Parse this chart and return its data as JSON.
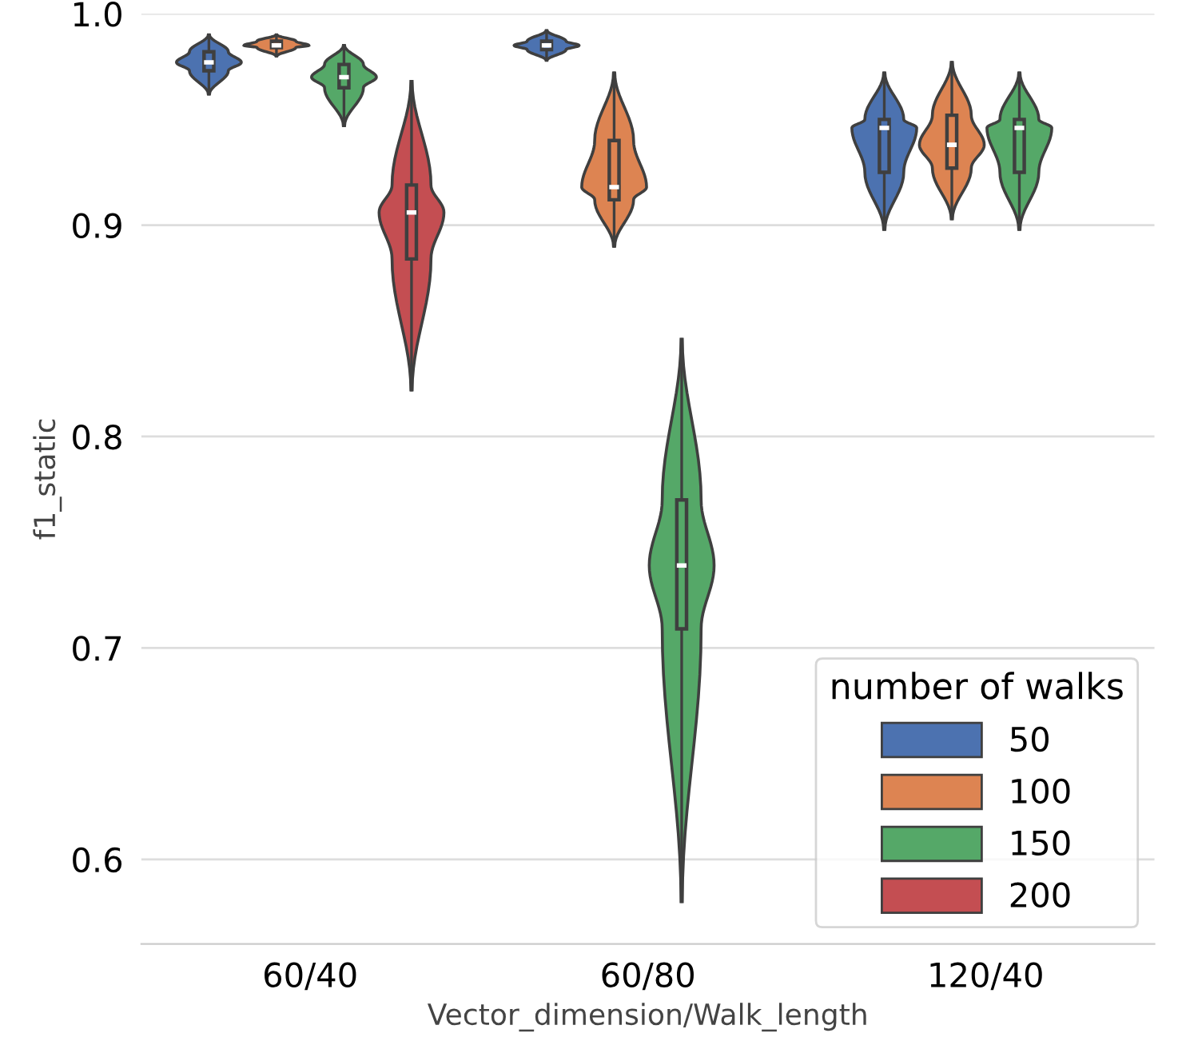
{
  "chart_data": {
    "type": "box",
    "xlabel": "Vector_dimension/Walk_length",
    "ylabel": "f1_static",
    "categories": [
      "60/40",
      "60/80",
      "120/40"
    ],
    "series": [
      {
        "name": "50",
        "color": "#4c72b0",
        "boxes": [
          {
            "low": 0.962,
            "q1": 0.973,
            "median": 0.977,
            "q3": 0.982,
            "high": 0.99
          },
          {
            "low": 0.978,
            "q1": 0.983,
            "median": 0.985,
            "q3": 0.987,
            "high": 0.992
          },
          {
            "low": 0.898,
            "q1": 0.925,
            "median": 0.946,
            "q3": 0.95,
            "high": 0.972
          }
        ]
      },
      {
        "name": "100",
        "color": "#dd8452",
        "boxes": [
          {
            "low": 0.98,
            "q1": 0.984,
            "median": 0.985,
            "q3": 0.987,
            "high": 0.99
          },
          {
            "low": 0.89,
            "q1": 0.912,
            "median": 0.918,
            "q3": 0.94,
            "high": 0.972
          },
          {
            "low": 0.903,
            "q1": 0.927,
            "median": 0.938,
            "q3": 0.952,
            "high": 0.977
          }
        ]
      },
      {
        "name": "150",
        "color": "#55a868",
        "boxes": [
          {
            "low": 0.947,
            "q1": 0.965,
            "median": 0.97,
            "q3": 0.976,
            "high": 0.985
          },
          {
            "low": 0.58,
            "q1": 0.709,
            "median": 0.739,
            "q3": 0.77,
            "high": 0.846
          },
          {
            "low": 0.898,
            "q1": 0.925,
            "median": 0.946,
            "q3": 0.95,
            "high": 0.972
          }
        ]
      },
      {
        "name": "200",
        "color": "#c44e52",
        "boxes": [
          {
            "low": 0.822,
            "q1": 0.884,
            "median": 0.906,
            "q3": 0.919,
            "high": 0.968
          },
          null,
          null
        ]
      }
    ],
    "ylim": [
      0.56,
      1.0
    ],
    "yticks": [
      0.6,
      0.7,
      0.8,
      0.9,
      {
        "value": 1.0,
        "label": "1.0"
      }
    ],
    "grid": "y",
    "legend": "bottom right",
    "legend_title": "number of walks"
  }
}
